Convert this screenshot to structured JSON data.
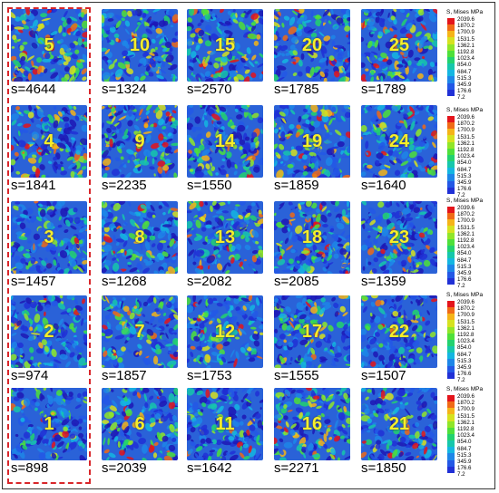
{
  "legend": {
    "title": "S, Mises MPa",
    "values": [
      "2039.6",
      "1870.2",
      "1700.9",
      "1531.5",
      "1362.1",
      "1192.8",
      "1023.4",
      "854.0",
      "684.7",
      "515.3",
      "345.9",
      "176.6",
      "7.2"
    ],
    "colors": [
      "#e4141b",
      "#f06a16",
      "#f5b418",
      "#d6e21f",
      "#90e629",
      "#4ee03a",
      "#22d26f",
      "#16c7ac",
      "#14b6e1",
      "#1d86e8",
      "#2358e6",
      "#2030d6",
      "#1d18b5"
    ]
  },
  "panels": [
    {
      "label": "1",
      "s": "s=898"
    },
    {
      "label": "2",
      "s": "s=974"
    },
    {
      "label": "3",
      "s": "s=1457"
    },
    {
      "label": "4",
      "s": "s=1841"
    },
    {
      "label": "5",
      "s": "s=4644"
    },
    {
      "label": "6",
      "s": "s=2039"
    },
    {
      "label": "7",
      "s": "s=1857"
    },
    {
      "label": "8",
      "s": "s=1268"
    },
    {
      "label": "9",
      "s": "s=2235"
    },
    {
      "label": "10",
      "s": "s=1324"
    },
    {
      "label": "11",
      "s": "s=1642"
    },
    {
      "label": "12",
      "s": "s=1753"
    },
    {
      "label": "13",
      "s": "s=2082"
    },
    {
      "label": "14",
      "s": "s=1550"
    },
    {
      "label": "15",
      "s": "s=2570"
    },
    {
      "label": "16",
      "s": "s=2271"
    },
    {
      "label": "17",
      "s": "s=1555"
    },
    {
      "label": "18",
      "s": "s=2085"
    },
    {
      "label": "19",
      "s": "s=1859"
    },
    {
      "label": "20",
      "s": "s=1785"
    },
    {
      "label": "21",
      "s": "s=1850"
    },
    {
      "label": "22",
      "s": "s=1507"
    },
    {
      "label": "23",
      "s": "s=1359"
    },
    {
      "label": "24",
      "s": "s=1640"
    },
    {
      "label": "25",
      "s": "s=1789"
    }
  ],
  "highlight_color": "#d8262a"
}
